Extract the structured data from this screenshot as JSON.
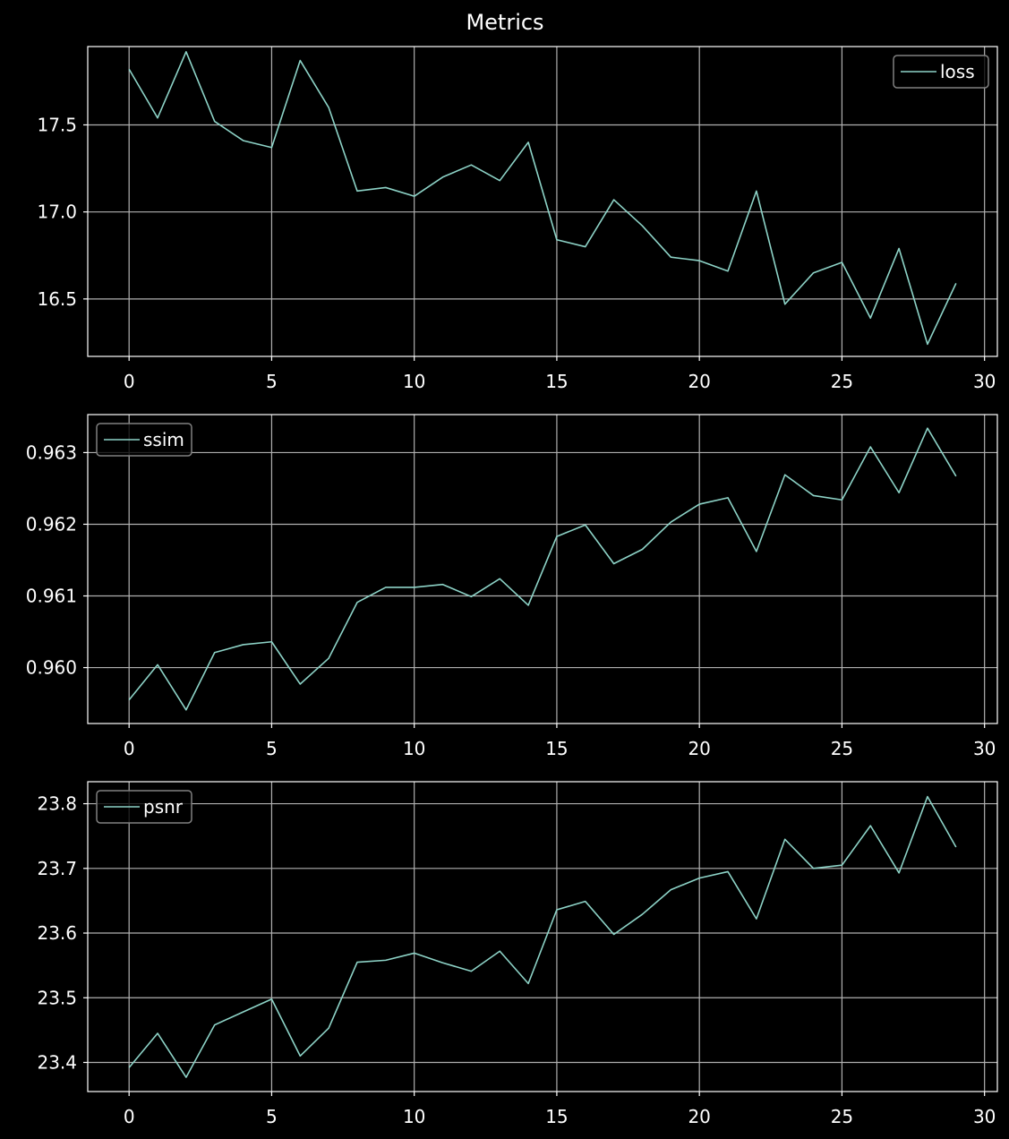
{
  "figure": {
    "title": "Metrics",
    "background": "#000000",
    "foreground": "#ffffff",
    "grid_color": "#b0b0b0",
    "series_color": "#8dd3c7"
  },
  "chart_data": [
    {
      "type": "line",
      "legend_loc": "top-right",
      "grid": true,
      "x": [
        0,
        1,
        2,
        3,
        4,
        5,
        6,
        7,
        8,
        9,
        10,
        11,
        12,
        13,
        14,
        15,
        16,
        17,
        18,
        19,
        20,
        21,
        22,
        23,
        24,
        25,
        26,
        27,
        28,
        29
      ],
      "xlim": [
        -1.45,
        30.45
      ],
      "ylim": [
        16.17,
        17.95
      ],
      "x_ticks": [
        0,
        5,
        10,
        15,
        20,
        25,
        30
      ],
      "y_ticks": [
        {
          "value": 16.5,
          "label": "16.5"
        },
        {
          "value": 17.0,
          "label": "17.0"
        },
        {
          "value": 17.5,
          "label": "17.5"
        }
      ],
      "series": [
        {
          "name": "loss",
          "color": "#8dd3c7",
          "values": [
            17.82,
            17.54,
            17.92,
            17.52,
            17.41,
            17.37,
            17.87,
            17.6,
            17.12,
            17.14,
            17.09,
            17.2,
            17.27,
            17.18,
            17.4,
            16.84,
            16.8,
            17.07,
            16.92,
            16.74,
            16.72,
            16.66,
            17.12,
            16.47,
            16.65,
            16.71,
            16.39,
            16.79,
            16.24,
            16.59
          ]
        }
      ]
    },
    {
      "type": "line",
      "legend_loc": "top-left",
      "grid": true,
      "x": [
        0,
        1,
        2,
        3,
        4,
        5,
        6,
        7,
        8,
        9,
        10,
        11,
        12,
        13,
        14,
        15,
        16,
        17,
        18,
        19,
        20,
        21,
        22,
        23,
        24,
        25,
        26,
        27,
        28,
        29
      ],
      "xlim": [
        -1.45,
        30.45
      ],
      "ylim": [
        0.95922,
        0.96353
      ],
      "x_ticks": [
        0,
        5,
        10,
        15,
        20,
        25,
        30
      ],
      "y_ticks": [
        {
          "value": 0.96,
          "label": "0.960"
        },
        {
          "value": 0.961,
          "label": "0.961"
        },
        {
          "value": 0.962,
          "label": "0.962"
        },
        {
          "value": 0.963,
          "label": "0.963"
        }
      ],
      "series": [
        {
          "name": "ssim",
          "color": "#8dd3c7",
          "values": [
            0.95955,
            0.96004,
            0.95941,
            0.96021,
            0.96032,
            0.96036,
            0.95977,
            0.96013,
            0.96091,
            0.96112,
            0.96112,
            0.96116,
            0.96099,
            0.96124,
            0.96087,
            0.96183,
            0.96199,
            0.96145,
            0.96165,
            0.96203,
            0.96228,
            0.96237,
            0.96162,
            0.96269,
            0.9624,
            0.96234,
            0.96308,
            0.96244,
            0.96334,
            0.96267
          ]
        }
      ]
    },
    {
      "type": "line",
      "legend_loc": "top-left",
      "grid": true,
      "x": [
        0,
        1,
        2,
        3,
        4,
        5,
        6,
        7,
        8,
        9,
        10,
        11,
        12,
        13,
        14,
        15,
        16,
        17,
        18,
        19,
        20,
        21,
        22,
        23,
        24,
        25,
        26,
        27,
        28,
        29
      ],
      "xlim": [
        -1.45,
        30.45
      ],
      "ylim": [
        23.355,
        23.834
      ],
      "x_ticks": [
        0,
        5,
        10,
        15,
        20,
        25,
        30
      ],
      "y_ticks": [
        {
          "value": 23.4,
          "label": "23.4"
        },
        {
          "value": 23.5,
          "label": "23.5"
        },
        {
          "value": 23.6,
          "label": "23.6"
        },
        {
          "value": 23.7,
          "label": "23.7"
        },
        {
          "value": 23.8,
          "label": "23.8"
        }
      ],
      "series": [
        {
          "name": "psnr",
          "color": "#8dd3c7",
          "values": [
            23.392,
            23.445,
            23.377,
            23.458,
            23.478,
            23.498,
            23.41,
            23.453,
            23.555,
            23.558,
            23.569,
            23.554,
            23.541,
            23.572,
            23.522,
            23.636,
            23.649,
            23.598,
            23.629,
            23.667,
            23.685,
            23.695,
            23.622,
            23.745,
            23.7,
            23.705,
            23.766,
            23.693,
            23.811,
            23.733
          ]
        }
      ]
    }
  ]
}
